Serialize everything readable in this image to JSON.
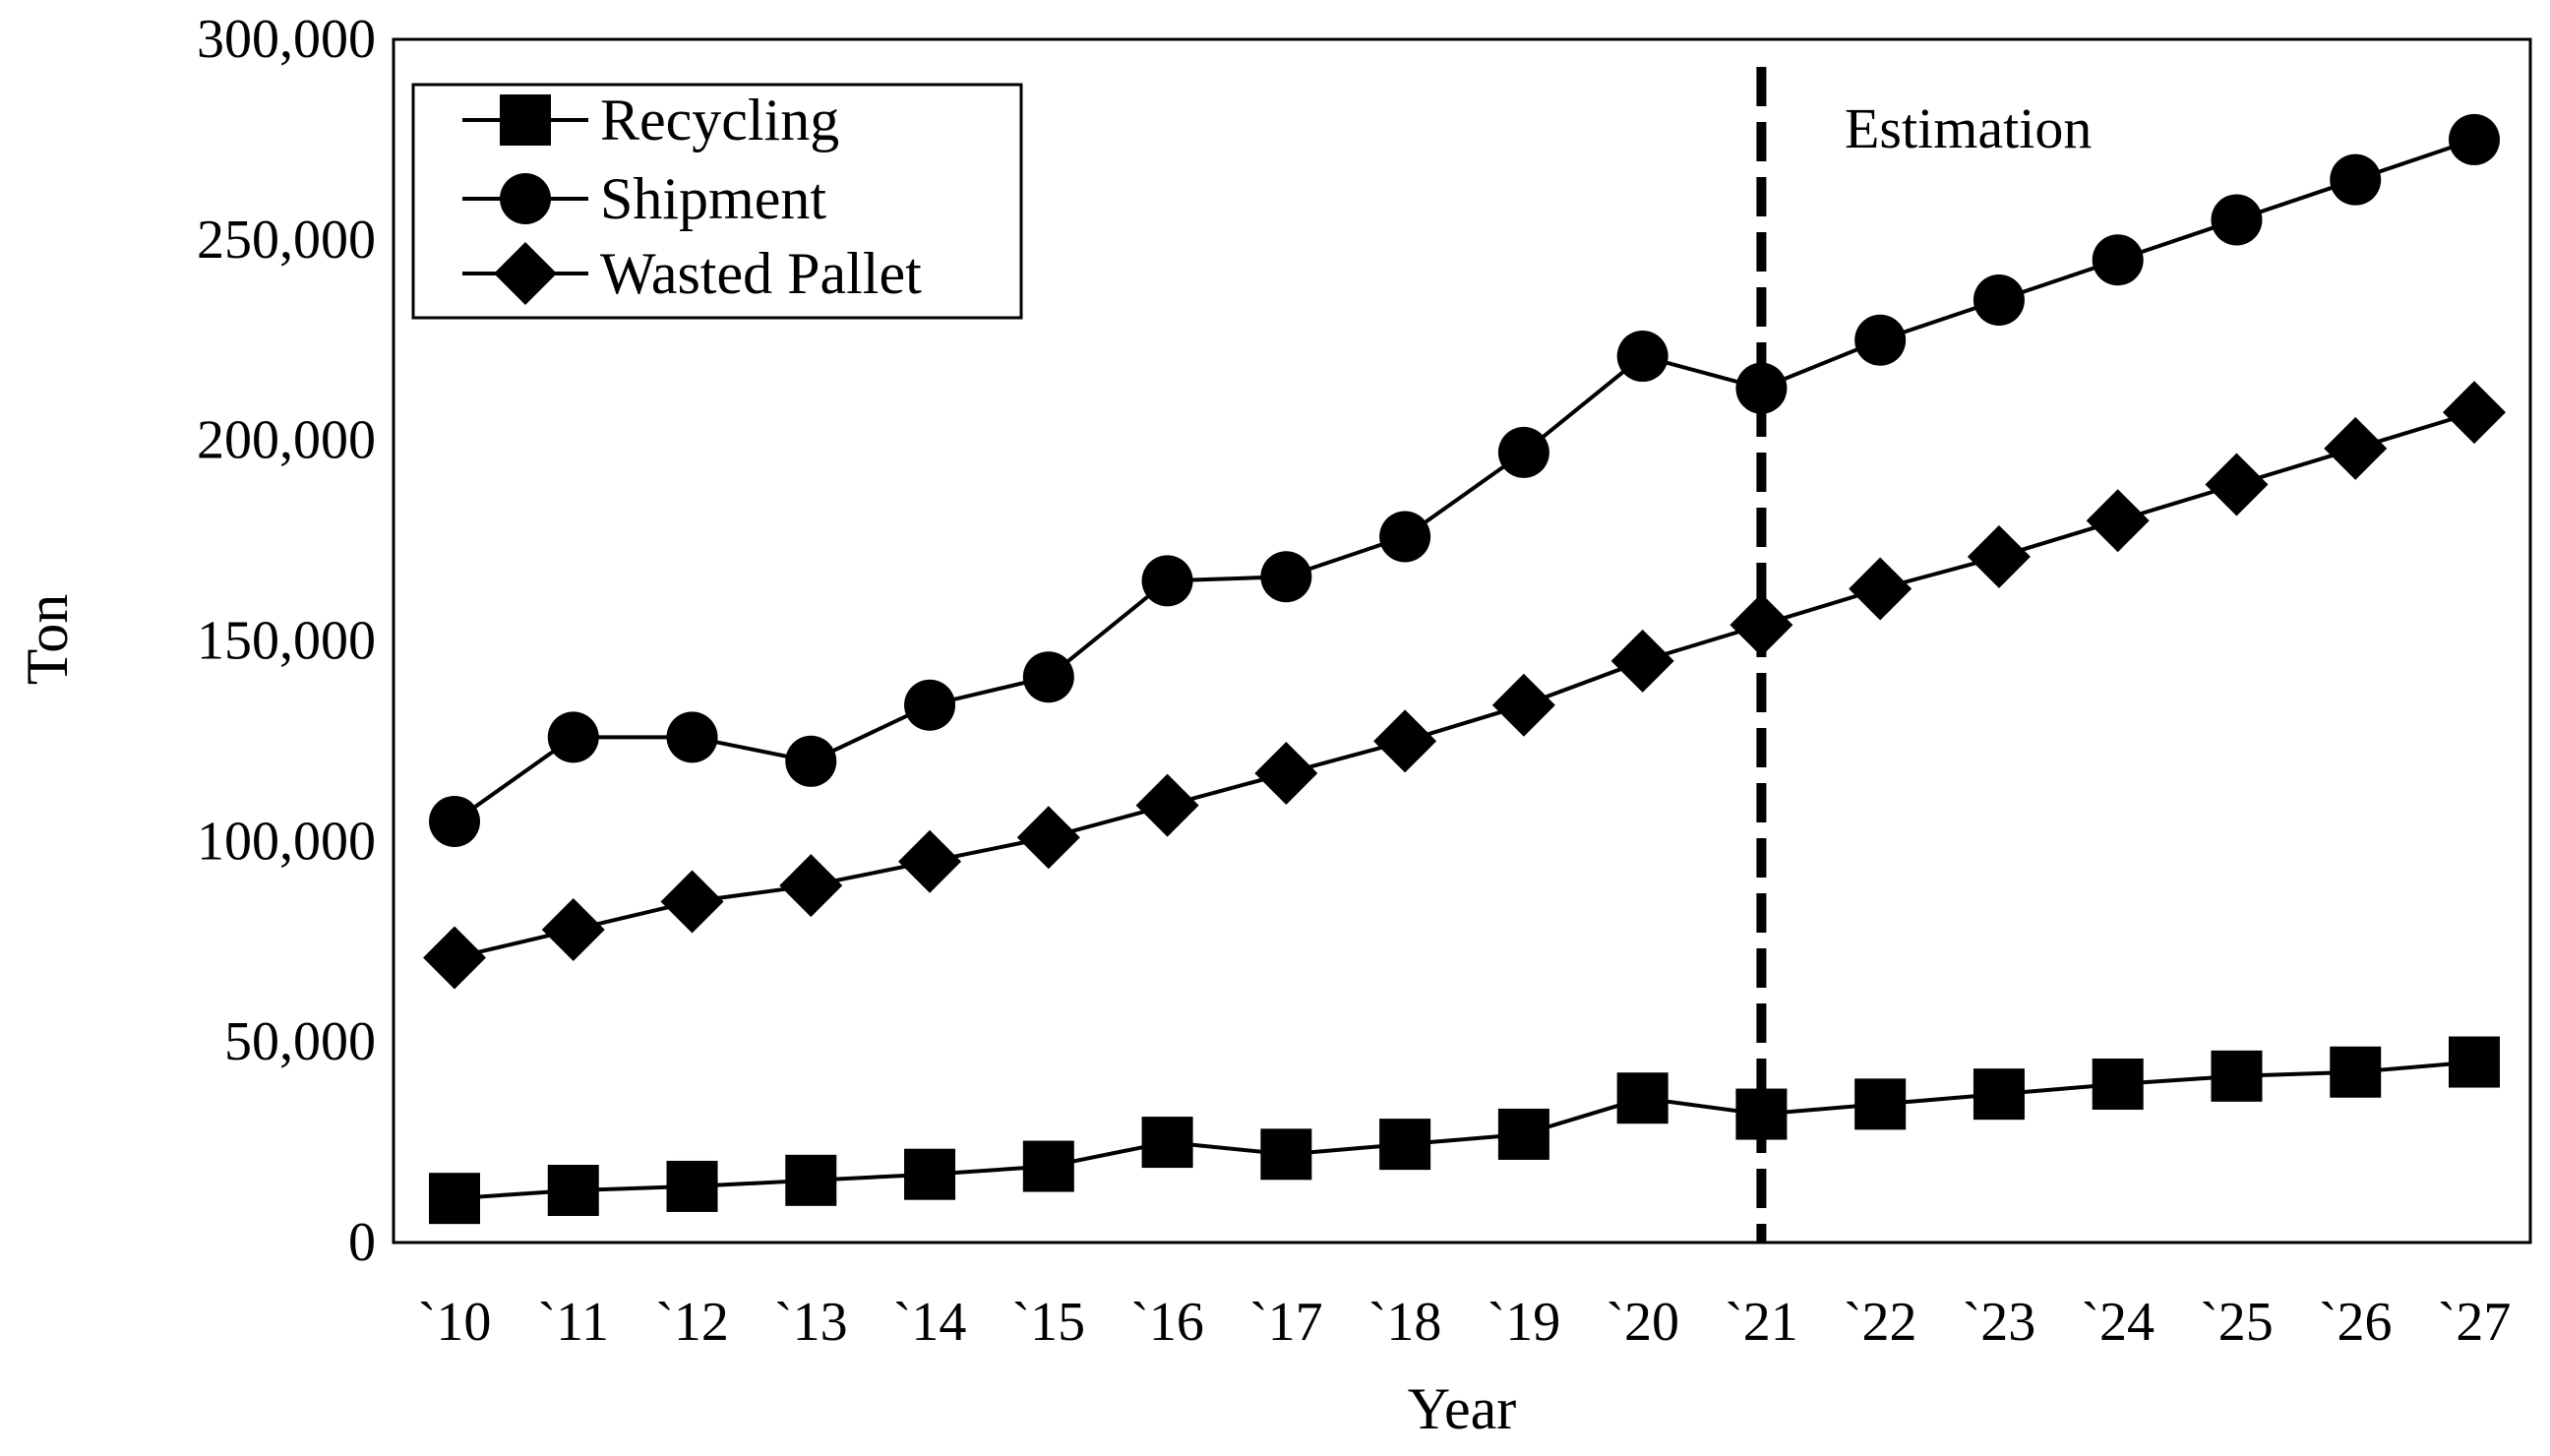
{
  "chart_data": {
    "type": "line",
    "title": "",
    "xlabel": "Year",
    "ylabel": "Ton",
    "ylim": [
      0,
      300000
    ],
    "yticks": [
      0,
      50000,
      100000,
      150000,
      200000,
      250000,
      300000
    ],
    "ytick_labels": [
      "0",
      "50,000",
      "100,000",
      "150,000",
      "200,000",
      "250,000",
      "300,000"
    ],
    "categories": [
      "`10",
      "`11",
      "`12",
      "`13",
      "`14",
      "`15",
      "`16",
      "`17",
      "`18",
      "`19",
      "`20",
      "`21",
      "`22",
      "`23",
      "`24",
      "`25",
      "`26",
      "`27"
    ],
    "series": [
      {
        "name": "Recycling",
        "marker": "square",
        "values": [
          11000,
          13000,
          14000,
          15500,
          17000,
          19000,
          25000,
          22000,
          24500,
          27000,
          36000,
          32000,
          34500,
          37000,
          39500,
          41500,
          42500,
          45000
        ]
      },
      {
        "name": "Shipment",
        "marker": "circle",
        "values": [
          105000,
          126000,
          126000,
          120000,
          134000,
          141000,
          165000,
          166000,
          176000,
          197000,
          221000,
          213000,
          225000,
          235000,
          245000,
          255000,
          265000,
          275000
        ]
      },
      {
        "name": "Wasted Pallet",
        "marker": "diamond",
        "values": [
          71000,
          78000,
          85000,
          89000,
          95000,
          101000,
          109000,
          117000,
          125000,
          134000,
          145000,
          154000,
          163000,
          171000,
          180000,
          189000,
          198000,
          207000
        ]
      }
    ],
    "legend_position": "top-left",
    "annotation": {
      "text": "Estimation",
      "divider_at_category": "`21",
      "divider_style": "dashed"
    },
    "grid": false,
    "colors": {
      "line": "#000000",
      "background": "#ffffff"
    }
  }
}
